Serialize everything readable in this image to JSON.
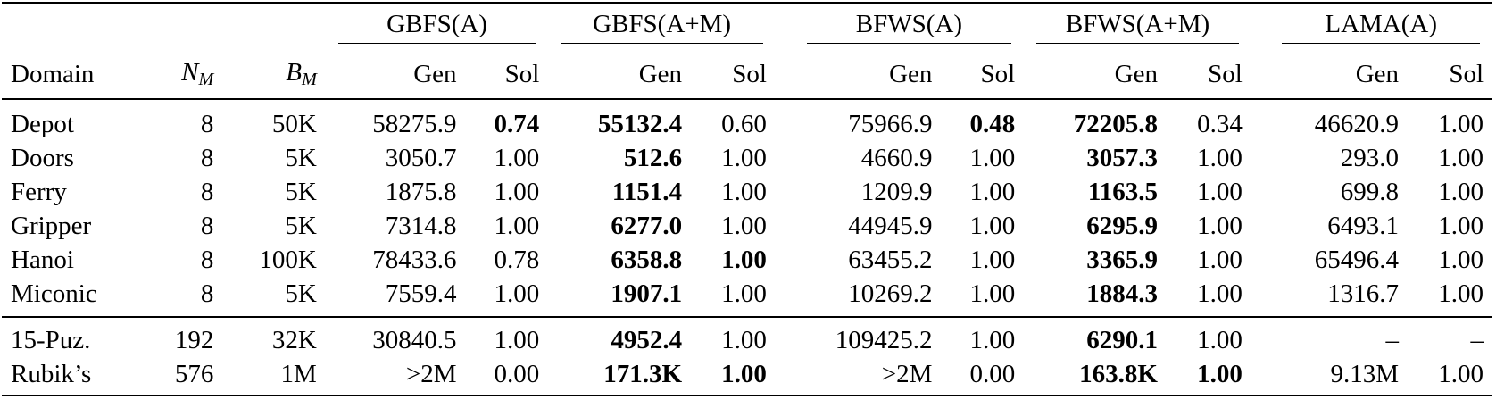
{
  "groups": [
    "GBFS(A)",
    "GBFS(A+M)",
    "BFWS(A)",
    "BFWS(A+M)",
    "LAMA(A)"
  ],
  "columns": {
    "domain": "Domain",
    "nm": {
      "base": "N",
      "sub": "M"
    },
    "bm": {
      "base": "B",
      "sub": "M"
    },
    "gen": "Gen",
    "sol": "Sol"
  },
  "rows_top": [
    {
      "domain": "Depot",
      "nm": "8",
      "bm": "50K",
      "v": [
        "58275.9",
        "0.74",
        "55132.4",
        "0.60",
        "75966.9",
        "0.48",
        "72205.8",
        "0.34",
        "46620.9",
        "1.00"
      ],
      "bold": [
        false,
        true,
        true,
        false,
        false,
        true,
        true,
        false,
        false,
        false
      ]
    },
    {
      "domain": "Doors",
      "nm": "8",
      "bm": "5K",
      "v": [
        "3050.7",
        "1.00",
        "512.6",
        "1.00",
        "4660.9",
        "1.00",
        "3057.3",
        "1.00",
        "293.0",
        "1.00"
      ],
      "bold": [
        false,
        false,
        true,
        false,
        false,
        false,
        true,
        false,
        false,
        false
      ]
    },
    {
      "domain": "Ferry",
      "nm": "8",
      "bm": "5K",
      "v": [
        "1875.8",
        "1.00",
        "1151.4",
        "1.00",
        "1209.9",
        "1.00",
        "1163.5",
        "1.00",
        "699.8",
        "1.00"
      ],
      "bold": [
        false,
        false,
        true,
        false,
        false,
        false,
        true,
        false,
        false,
        false
      ]
    },
    {
      "domain": "Gripper",
      "nm": "8",
      "bm": "5K",
      "v": [
        "7314.8",
        "1.00",
        "6277.0",
        "1.00",
        "44945.9",
        "1.00",
        "6295.9",
        "1.00",
        "6493.1",
        "1.00"
      ],
      "bold": [
        false,
        false,
        true,
        false,
        false,
        false,
        true,
        false,
        false,
        false
      ]
    },
    {
      "domain": "Hanoi",
      "nm": "8",
      "bm": "100K",
      "v": [
        "78433.6",
        "0.78",
        "6358.8",
        "1.00",
        "63455.2",
        "1.00",
        "3365.9",
        "1.00",
        "65496.4",
        "1.00"
      ],
      "bold": [
        false,
        false,
        true,
        true,
        false,
        false,
        true,
        false,
        false,
        false
      ]
    },
    {
      "domain": "Miconic",
      "nm": "8",
      "bm": "5K",
      "v": [
        "7559.4",
        "1.00",
        "1907.1",
        "1.00",
        "10269.2",
        "1.00",
        "1884.3",
        "1.00",
        "1316.7",
        "1.00"
      ],
      "bold": [
        false,
        false,
        true,
        false,
        false,
        false,
        true,
        false,
        false,
        false
      ]
    }
  ],
  "rows_bottom": [
    {
      "domain": "15-Puz.",
      "nm": "192",
      "bm": "32K",
      "v": [
        "30840.5",
        "1.00",
        "4952.4",
        "1.00",
        "109425.2",
        "1.00",
        "6290.1",
        "1.00",
        "–",
        "–"
      ],
      "bold": [
        false,
        false,
        true,
        false,
        false,
        false,
        true,
        false,
        false,
        false
      ]
    },
    {
      "domain": "Rubik’s",
      "nm": "576",
      "bm": "1M",
      "v": [
        ">2M",
        "0.00",
        "171.3K",
        "1.00",
        ">2M",
        "0.00",
        "163.8K",
        "1.00",
        "9.13M",
        "1.00"
      ],
      "bold": [
        false,
        false,
        true,
        true,
        false,
        false,
        true,
        true,
        false,
        false
      ]
    }
  ]
}
